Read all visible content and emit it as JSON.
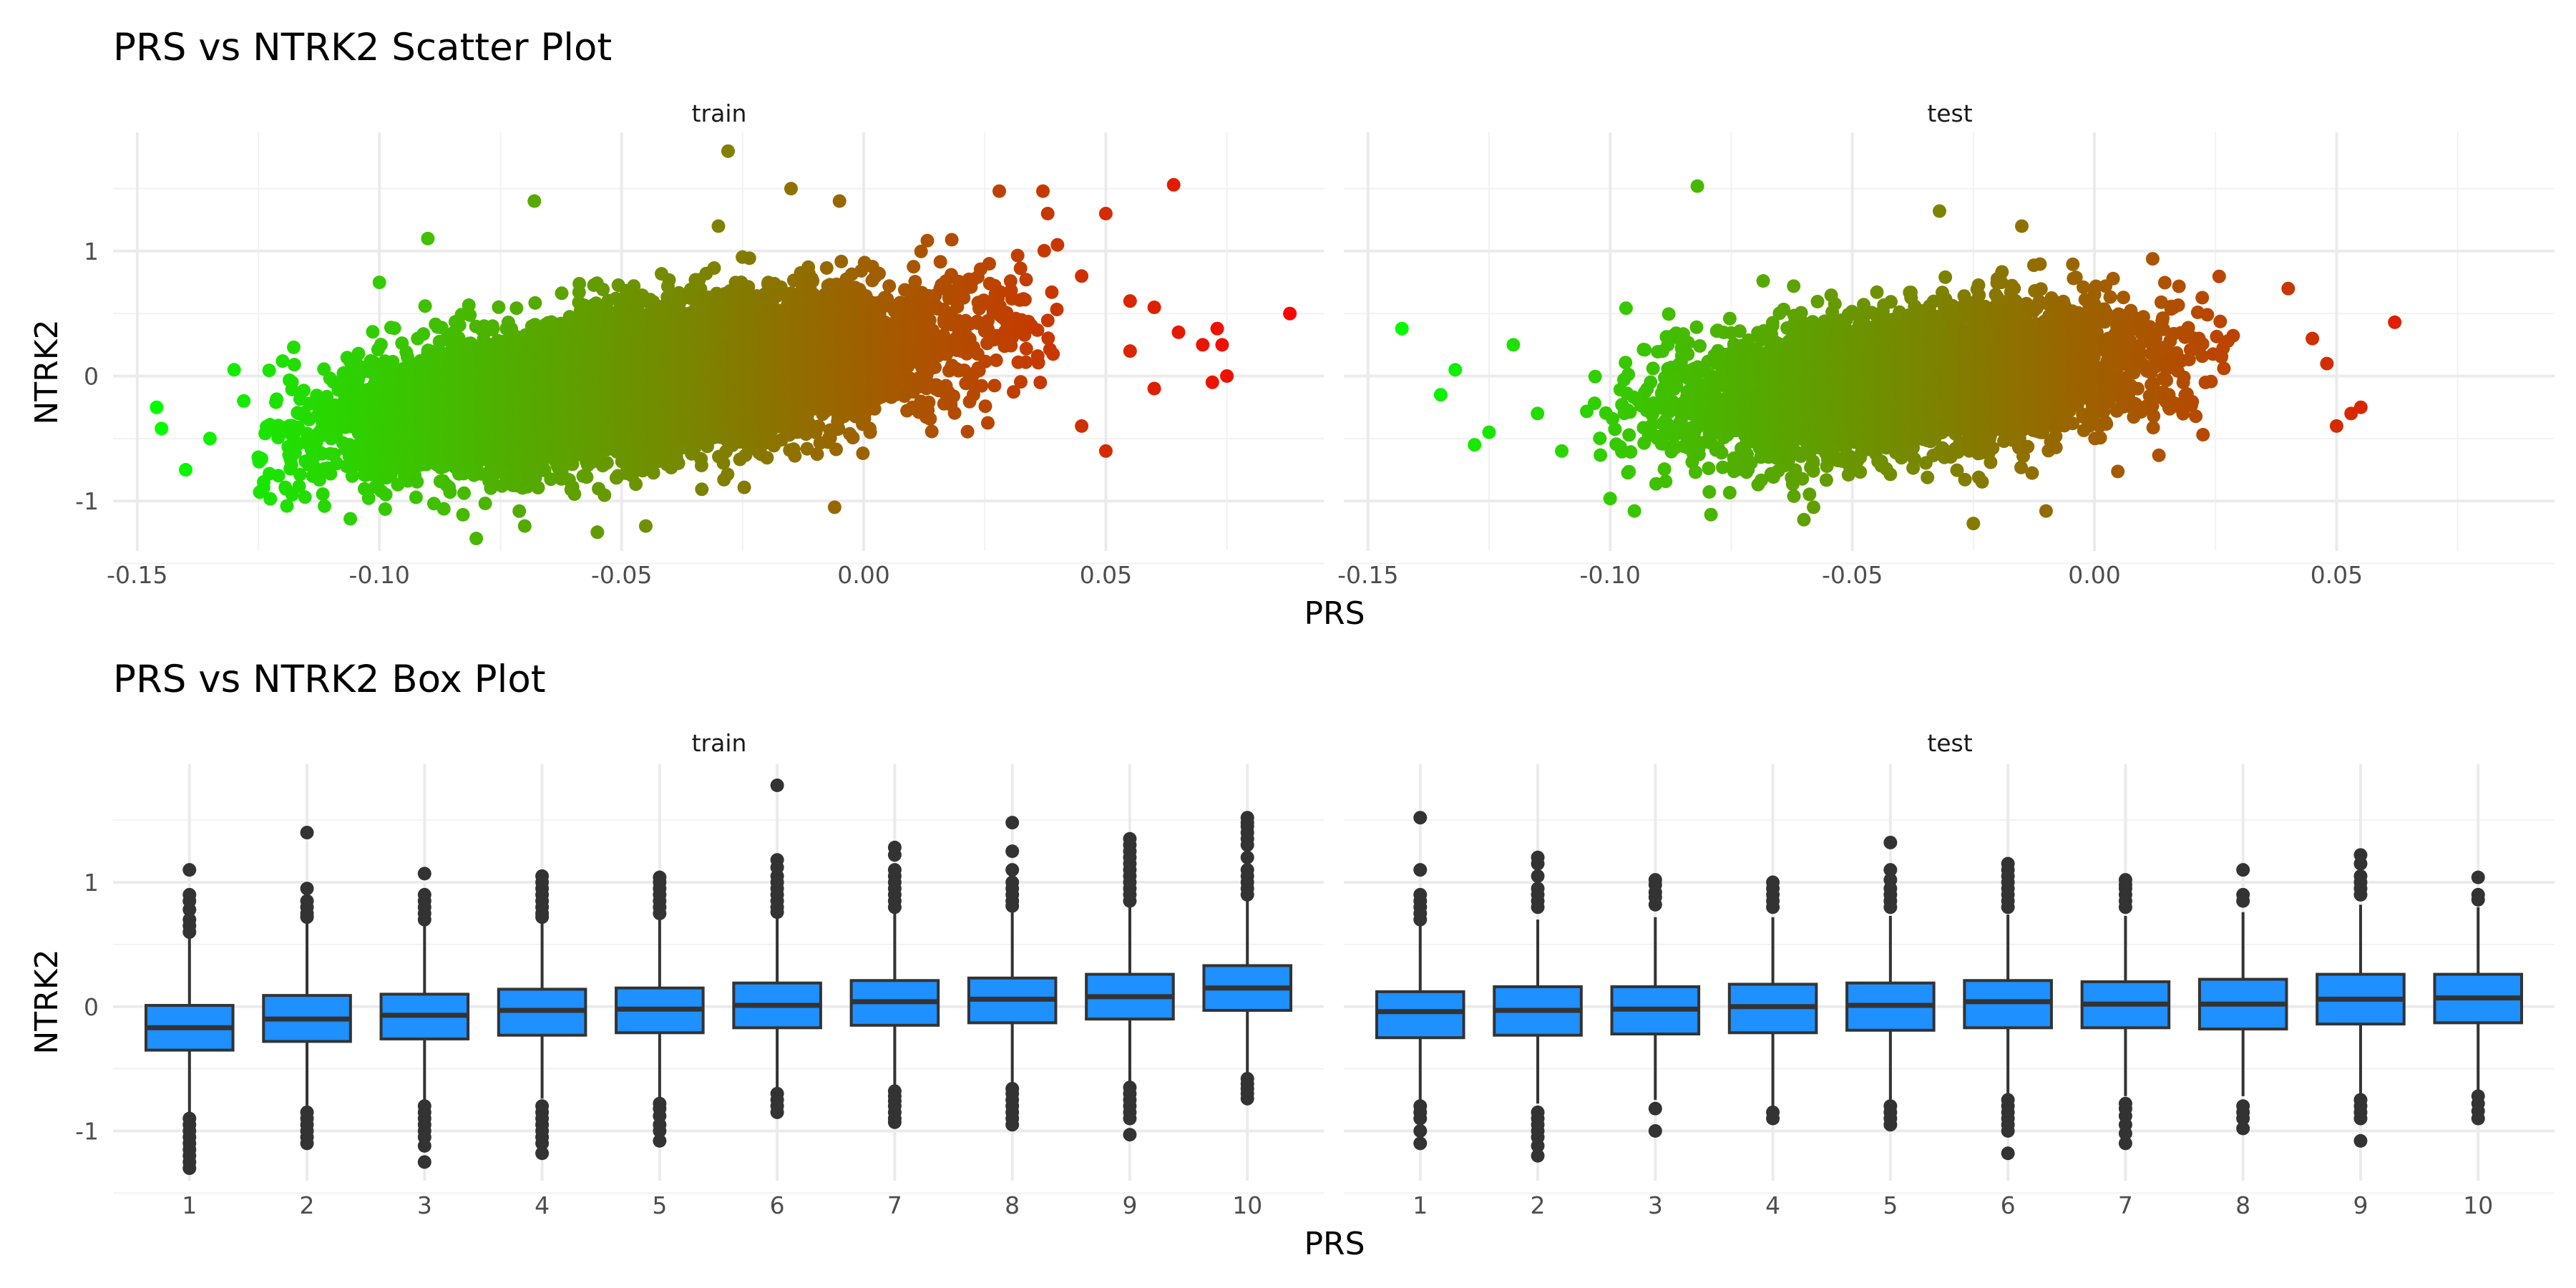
{
  "chart_data": [
    {
      "type": "scatter",
      "title": "PRS vs NTRK2 Scatter Plot",
      "xlabel": "PRS",
      "ylabel": "NTRK2",
      "facets": [
        "train",
        "test"
      ],
      "xlim": [
        -0.155,
        0.095
      ],
      "ylim": [
        -1.4,
        1.95
      ],
      "xticks": [
        -0.15,
        -0.1,
        -0.05,
        0.0,
        0.05
      ],
      "xtick_labels": [
        "-0.15",
        "-0.10",
        "-0.05",
        "0.00",
        "0.05"
      ],
      "yticks": [
        -1,
        0,
        1
      ],
      "ytick_labels": [
        "-1",
        "0",
        "1"
      ],
      "grid": true,
      "color_scale": {
        "low": "#00ff00",
        "high": "#ff0000",
        "mapped_to": "PRS"
      },
      "panels": [
        {
          "facet": "train",
          "cloud": {
            "n": 9000,
            "x_mean": -0.045,
            "x_sd": 0.03,
            "x_min": -0.125,
            "x_max": 0.04,
            "slope": 5.3,
            "y_sd": 0.27
          },
          "points": [
            {
              "x": -0.146,
              "y": -0.25
            },
            {
              "x": -0.145,
              "y": -0.42
            },
            {
              "x": -0.14,
              "y": -0.75
            },
            {
              "x": -0.135,
              "y": -0.5
            },
            {
              "x": -0.13,
              "y": 0.05
            },
            {
              "x": -0.128,
              "y": -0.2
            },
            {
              "x": -0.125,
              "y": -0.65
            },
            {
              "x": -0.12,
              "y": 0.12
            },
            {
              "x": -0.118,
              "y": -0.95
            },
            {
              "x": -0.1,
              "y": 0.75
            },
            {
              "x": -0.09,
              "y": 1.1
            },
            {
              "x": -0.068,
              "y": 1.4
            },
            {
              "x": -0.028,
              "y": 1.8
            },
            {
              "x": -0.03,
              "y": 1.2
            },
            {
              "x": -0.015,
              "y": 1.5
            },
            {
              "x": -0.005,
              "y": 1.4
            },
            {
              "x": -0.08,
              "y": -1.3
            },
            {
              "x": -0.07,
              "y": -1.2
            },
            {
              "x": -0.055,
              "y": -1.25
            },
            {
              "x": -0.045,
              "y": -1.2
            },
            {
              "x": -0.006,
              "y": -1.05
            },
            {
              "x": 0.028,
              "y": 1.48
            },
            {
              "x": 0.037,
              "y": 1.48
            },
            {
              "x": 0.038,
              "y": 1.3
            },
            {
              "x": 0.04,
              "y": 1.05
            },
            {
              "x": 0.05,
              "y": 1.3
            },
            {
              "x": 0.064,
              "y": 1.53
            },
            {
              "x": 0.045,
              "y": 0.8
            },
            {
              "x": 0.055,
              "y": 0.6
            },
            {
              "x": 0.06,
              "y": 0.55
            },
            {
              "x": 0.065,
              "y": 0.35
            },
            {
              "x": 0.07,
              "y": 0.25
            },
            {
              "x": 0.072,
              "y": -0.05
            },
            {
              "x": 0.073,
              "y": 0.38
            },
            {
              "x": 0.074,
              "y": 0.25
            },
            {
              "x": 0.075,
              "y": 0.0
            },
            {
              "x": 0.088,
              "y": 0.5
            },
            {
              "x": 0.05,
              "y": -0.6
            },
            {
              "x": 0.055,
              "y": 0.2
            },
            {
              "x": 0.06,
              "y": -0.1
            },
            {
              "x": 0.045,
              "y": -0.4
            }
          ]
        },
        {
          "facet": "test",
          "cloud": {
            "n": 4500,
            "x_mean": -0.038,
            "x_sd": 0.024,
            "x_min": -0.105,
            "x_max": 0.03,
            "slope": 3.6,
            "y_sd": 0.27
          },
          "points": [
            {
              "x": -0.143,
              "y": 0.38
            },
            {
              "x": -0.135,
              "y": -0.15
            },
            {
              "x": -0.132,
              "y": 0.05
            },
            {
              "x": -0.128,
              "y": -0.55
            },
            {
              "x": -0.125,
              "y": -0.45
            },
            {
              "x": -0.12,
              "y": 0.25
            },
            {
              "x": -0.115,
              "y": -0.3
            },
            {
              "x": -0.11,
              "y": -0.6
            },
            {
              "x": -0.1,
              "y": -0.98
            },
            {
              "x": -0.095,
              "y": -1.08
            },
            {
              "x": -0.082,
              "y": 1.52
            },
            {
              "x": -0.058,
              "y": -1.05
            },
            {
              "x": -0.032,
              "y": 1.32
            },
            {
              "x": -0.015,
              "y": 1.2
            },
            {
              "x": -0.06,
              "y": -1.15
            },
            {
              "x": -0.025,
              "y": -1.18
            },
            {
              "x": -0.01,
              "y": -1.08
            },
            {
              "x": 0.04,
              "y": 0.7
            },
            {
              "x": 0.045,
              "y": 0.3
            },
            {
              "x": 0.048,
              "y": 0.1
            },
            {
              "x": 0.05,
              "y": -0.4
            },
            {
              "x": 0.053,
              "y": -0.3
            },
            {
              "x": 0.055,
              "y": -0.25
            },
            {
              "x": 0.062,
              "y": 0.43
            }
          ]
        }
      ]
    },
    {
      "type": "box",
      "title": "PRS vs NTRK2 Box Plot",
      "xlabel": "PRS",
      "ylabel": "NTRK2",
      "facets": [
        "train",
        "test"
      ],
      "categories": [
        "1",
        "2",
        "3",
        "4",
        "5",
        "6",
        "7",
        "8",
        "9",
        "10"
      ],
      "ylim": [
        -1.4,
        1.95
      ],
      "yticks": [
        -1,
        0,
        1
      ],
      "ytick_labels": [
        "-1",
        "0",
        "1"
      ],
      "grid": true,
      "box_fill": "#1e90ff",
      "box_outline": "#333333",
      "panels": [
        {
          "facet": "train",
          "boxes": [
            {
              "min": -0.88,
              "q1": -0.35,
              "median": -0.17,
              "q3": 0.01,
              "max": 0.55,
              "outliers": [
                1.1,
                0.9,
                0.85,
                0.78,
                0.7,
                0.65,
                0.6,
                -0.9,
                -0.95,
                -1.0,
                -1.05,
                -1.1,
                -1.15,
                -1.2,
                -1.25,
                -1.3
              ]
            },
            {
              "min": -0.8,
              "q1": -0.28,
              "median": -0.1,
              "q3": 0.09,
              "max": 0.68,
              "outliers": [
                1.4,
                0.95,
                0.85,
                0.8,
                0.75,
                0.72,
                -0.85,
                -0.9,
                -0.95,
                -1.0,
                -1.05,
                -1.1
              ]
            },
            {
              "min": -0.78,
              "q1": -0.26,
              "median": -0.07,
              "q3": 0.1,
              "max": 0.66,
              "outliers": [
                1.07,
                0.9,
                0.85,
                0.8,
                0.75,
                0.7,
                -0.8,
                -0.85,
                -0.9,
                -0.95,
                -1.0,
                -1.05,
                -1.12,
                -1.25
              ]
            },
            {
              "min": -0.74,
              "q1": -0.23,
              "median": -0.03,
              "q3": 0.14,
              "max": 0.68,
              "outliers": [
                1.05,
                1.0,
                0.95,
                0.9,
                0.85,
                0.8,
                0.75,
                0.72,
                -0.8,
                -0.85,
                -0.9,
                -0.95,
                -1.0,
                -1.05,
                -1.1,
                -1.18
              ]
            },
            {
              "min": -0.74,
              "q1": -0.21,
              "median": -0.02,
              "q3": 0.15,
              "max": 0.7,
              "outliers": [
                1.04,
                1.0,
                0.95,
                0.9,
                0.85,
                0.8,
                0.75,
                -0.78,
                -0.82,
                -0.88,
                -0.95,
                -1.0,
                -1.08
              ]
            },
            {
              "min": -0.66,
              "q1": -0.17,
              "median": 0.01,
              "q3": 0.19,
              "max": 0.72,
              "outliers": [
                1.78,
                1.18,
                1.12,
                1.05,
                1.0,
                0.95,
                0.9,
                0.85,
                0.8,
                0.76,
                -0.7,
                -0.75,
                -0.8,
                -0.85
              ]
            },
            {
              "min": -0.66,
              "q1": -0.15,
              "median": 0.04,
              "q3": 0.21,
              "max": 0.75,
              "outliers": [
                1.28,
                1.22,
                1.1,
                1.05,
                1.0,
                0.95,
                0.9,
                0.85,
                0.8,
                -0.68,
                -0.72,
                -0.76,
                -0.8,
                -0.85,
                -0.9,
                -0.93
              ]
            },
            {
              "min": -0.64,
              "q1": -0.13,
              "median": 0.06,
              "q3": 0.23,
              "max": 0.77,
              "outliers": [
                1.48,
                1.25,
                1.1,
                1.0,
                0.95,
                0.9,
                0.85,
                0.81,
                -0.66,
                -0.7,
                -0.75,
                -0.8,
                -0.85,
                -0.9,
                -0.95
              ]
            },
            {
              "min": -0.62,
              "q1": -0.1,
              "median": 0.08,
              "q3": 0.26,
              "max": 0.8,
              "outliers": [
                1.35,
                1.3,
                1.25,
                1.2,
                1.15,
                1.1,
                1.05,
                1.0,
                0.95,
                0.9,
                0.85,
                -0.65,
                -0.7,
                -0.75,
                -0.8,
                -0.85,
                -0.9,
                -1.03
              ]
            },
            {
              "min": -0.55,
              "q1": -0.03,
              "median": 0.15,
              "q3": 0.33,
              "max": 0.85,
              "outliers": [
                1.52,
                1.48,
                1.45,
                1.4,
                1.35,
                1.3,
                1.2,
                1.1,
                1.05,
                1.0,
                0.95,
                0.9,
                -0.58,
                -0.62,
                -0.66,
                -0.7,
                -0.74
              ]
            }
          ]
        },
        {
          "facet": "test",
          "boxes": [
            {
              "min": -0.75,
              "q1": -0.25,
              "median": -0.04,
              "q3": 0.12,
              "max": 0.65,
              "outliers": [
                1.52,
                1.1,
                0.9,
                0.85,
                0.8,
                0.75,
                0.7,
                -0.8,
                -0.85,
                -0.9,
                -1.0,
                -1.1
              ]
            },
            {
              "min": -0.78,
              "q1": -0.23,
              "median": -0.03,
              "q3": 0.16,
              "max": 0.7,
              "outliers": [
                1.2,
                1.15,
                1.05,
                0.95,
                0.9,
                0.85,
                0.8,
                -0.85,
                -0.9,
                -0.95,
                -1.0,
                -1.05,
                -1.12,
                -1.2
              ]
            },
            {
              "min": -0.75,
              "q1": -0.22,
              "median": -0.02,
              "q3": 0.16,
              "max": 0.72,
              "outliers": [
                1.02,
                0.98,
                0.92,
                0.88,
                0.82,
                -0.82,
                -1.0
              ]
            },
            {
              "min": -0.8,
              "q1": -0.21,
              "median": 0.0,
              "q3": 0.18,
              "max": 0.72,
              "outliers": [
                1.0,
                0.95,
                0.9,
                0.85,
                0.8,
                -0.85,
                -0.9
              ]
            },
            {
              "min": -0.76,
              "q1": -0.19,
              "median": 0.01,
              "q3": 0.19,
              "max": 0.73,
              "outliers": [
                1.32,
                1.1,
                1.02,
                0.95,
                0.9,
                0.85,
                0.8,
                -0.8,
                -0.85,
                -0.9,
                -0.95
              ]
            },
            {
              "min": -0.72,
              "q1": -0.17,
              "median": 0.04,
              "q3": 0.21,
              "max": 0.74,
              "outliers": [
                1.15,
                1.1,
                1.05,
                1.0,
                0.95,
                0.9,
                0.85,
                0.8,
                -0.75,
                -0.8,
                -0.85,
                -0.9,
                -0.95,
                -1.0,
                -1.18
              ]
            },
            {
              "min": -0.72,
              "q1": -0.17,
              "median": 0.02,
              "q3": 0.2,
              "max": 0.73,
              "outliers": [
                1.02,
                0.98,
                0.95,
                0.9,
                0.85,
                0.8,
                -0.78,
                -0.82,
                -0.88,
                -0.95,
                -1.02,
                -1.1
              ]
            },
            {
              "min": -0.72,
              "q1": -0.18,
              "median": 0.02,
              "q3": 0.22,
              "max": 0.76,
              "outliers": [
                1.1,
                0.9,
                0.85,
                -0.8,
                -0.85,
                -0.9,
                -0.98
              ]
            },
            {
              "min": -0.7,
              "q1": -0.14,
              "median": 0.06,
              "q3": 0.26,
              "max": 0.82,
              "outliers": [
                1.22,
                1.15,
                1.05,
                1.0,
                0.95,
                0.9,
                -0.75,
                -0.8,
                -0.85,
                -0.9,
                -1.08
              ]
            },
            {
              "min": -0.68,
              "q1": -0.13,
              "median": 0.07,
              "q3": 0.26,
              "max": 0.8,
              "outliers": [
                1.04,
                0.9,
                0.86,
                -0.72,
                -0.78,
                -0.84,
                -0.9
              ]
            }
          ]
        }
      ]
    }
  ]
}
